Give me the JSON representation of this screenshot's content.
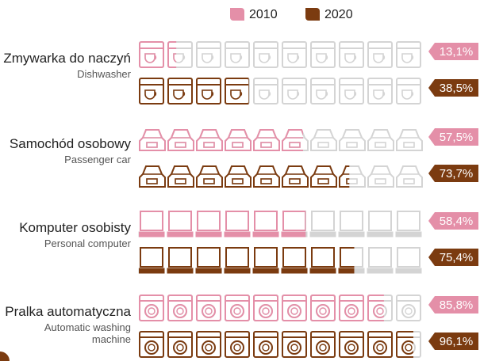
{
  "chart_data": {
    "type": "pictogram",
    "categories": [
      {
        "name": "Zmywarka do naczyń",
        "subtitle": "Dishwasher"
      },
      {
        "name": "Samochód osobowy",
        "subtitle": "Passenger car"
      },
      {
        "name": "Komputer osobisty",
        "subtitle": "Personal computer"
      },
      {
        "name": "Pralka automatyczna",
        "subtitle": "Automatic washing machine"
      }
    ],
    "series": [
      {
        "name": "2010",
        "color": "#e48fa8",
        "values": [
          13.1,
          57.5,
          58.4,
          85.8
        ],
        "value_labels": [
          "13,1%",
          "57,5%",
          "58,4%",
          "85,8%"
        ]
      },
      {
        "name": "2020",
        "color": "#7b3b10",
        "values": [
          38.5,
          73.7,
          75.4,
          96.1
        ],
        "value_labels": [
          "38,5%",
          "73,7%",
          "75,4%",
          "96,1%"
        ]
      }
    ],
    "xlim": [
      0,
      100
    ]
  }
}
